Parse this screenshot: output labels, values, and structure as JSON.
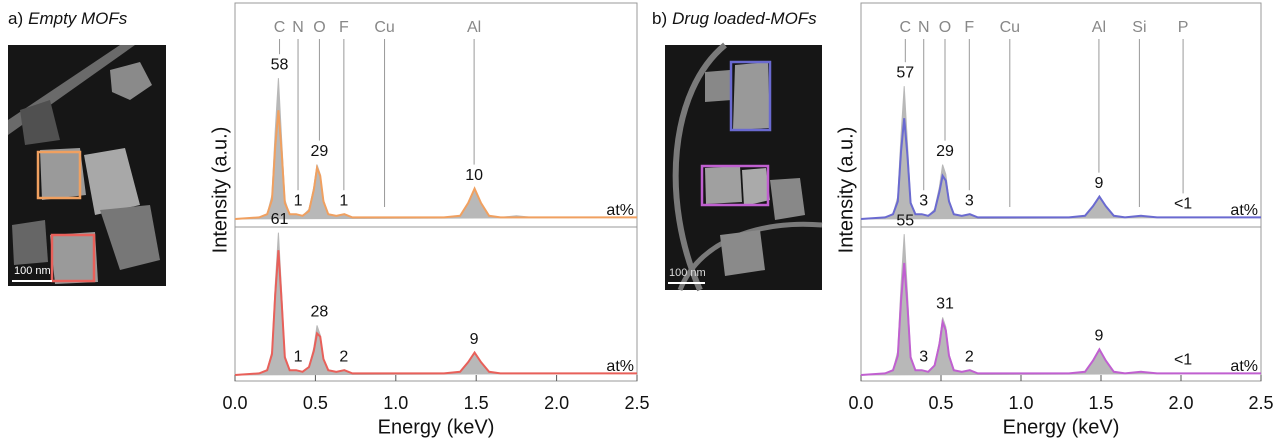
{
  "chart_data": [
    {
      "type": "line",
      "panel_label": "a)",
      "panel_title": "Empty MOFs",
      "scale_bar": "100 nm",
      "xlabel": "Energy (keV)",
      "ylabel": "Intensity (a.u.)",
      "unit": "at%",
      "xlim": [
        0,
        2.5
      ],
      "xticks": [
        {
          "value": 0,
          "label": "0.0"
        },
        0.5,
        {
          "value": 1,
          "label": "1.0"
        },
        1.5,
        {
          "value": 2,
          "label": "2.0"
        },
        2.5
      ],
      "elements": [
        "C",
        "N",
        "O",
        "F",
        "Cu",
        "Al"
      ],
      "energies": [
        0.277,
        0.392,
        0.525,
        0.677,
        0.93,
        1.487
      ],
      "x": [
        0,
        0.15,
        0.2,
        0.23,
        0.25,
        0.27,
        0.29,
        0.31,
        0.34,
        0.38,
        0.42,
        0.46,
        0.49,
        0.51,
        0.53,
        0.55,
        0.58,
        0.63,
        0.68,
        0.73,
        0.8,
        0.93,
        1.1,
        1.3,
        1.4,
        1.45,
        1.49,
        1.53,
        1.58,
        1.65,
        1.75,
        1.85,
        2.0,
        2.2,
        2.5
      ],
      "spectra": [
        {
          "ylim": [
            0,
            100
          ],
          "composition": [
            58,
            1,
            29,
            1,
            null,
            10
          ],
          "series": [
            {
              "color": "#b8b8b8",
              "values": [
                0,
                1,
                3,
                15,
                55,
                88,
                50,
                12,
                3,
                3,
                2,
                6,
                20,
                34,
                28,
                12,
                3,
                2,
                3,
                1,
                1,
                1,
                1,
                1,
                2,
                10,
                19,
                10,
                2,
                1,
                2,
                1,
                1,
                1,
                1
              ]
            },
            {
              "color": "#f0a060",
              "values": [
                0,
                1,
                3,
                12,
                45,
                68,
                42,
                10,
                3,
                3,
                2,
                5,
                18,
                32,
                27,
                11,
                3,
                2,
                3,
                1,
                1,
                1,
                1,
                1,
                2,
                10,
                19,
                10,
                2,
                1,
                1,
                1,
                1,
                1,
                1
              ]
            }
          ]
        },
        {
          "ylim": [
            0,
            100
          ],
          "composition": [
            61,
            1,
            28,
            2,
            null,
            9
          ],
          "series": [
            {
              "color": "#b8b8b8",
              "values": [
                0,
                1,
                3,
                15,
                56,
                89,
                52,
                12,
                3,
                3,
                2,
                5,
                17,
                31,
                25,
                10,
                3,
                2,
                3,
                1,
                1,
                1,
                1,
                1,
                2,
                8,
                14,
                8,
                2,
                1,
                1,
                1,
                1,
                1,
                1
              ]
            },
            {
              "color": "#e8605a",
              "values": [
                0,
                1,
                3,
                13,
                50,
                78,
                46,
                11,
                3,
                3,
                2,
                5,
                15,
                26,
                24,
                10,
                3,
                2,
                3,
                1,
                1,
                1,
                1,
                1,
                2,
                8,
                14,
                8,
                2,
                1,
                1,
                1,
                1,
                1,
                1
              ]
            }
          ]
        }
      ]
    },
    {
      "type": "line",
      "panel_label": "b)",
      "panel_title": "Drug loaded-MOFs",
      "scale_bar": "100 nm",
      "xlabel": "Energy (keV)",
      "ylabel": "Intensity (a.u.)",
      "unit": "at%",
      "xlim": [
        0,
        2.5
      ],
      "xticks": [
        {
          "value": 0,
          "label": "0.0"
        },
        0.5,
        {
          "value": 1,
          "label": "1.0"
        },
        1.5,
        {
          "value": 2,
          "label": "2.0"
        },
        2.5
      ],
      "elements": [
        "C",
        "N",
        "O",
        "F",
        "Cu",
        "Al",
        "Si",
        "P"
      ],
      "energies": [
        0.277,
        0.392,
        0.525,
        0.677,
        0.93,
        1.487,
        1.74,
        2.013
      ],
      "x": [
        0,
        0.15,
        0.2,
        0.23,
        0.25,
        0.27,
        0.29,
        0.31,
        0.34,
        0.38,
        0.42,
        0.46,
        0.49,
        0.51,
        0.53,
        0.55,
        0.58,
        0.63,
        0.68,
        0.73,
        0.8,
        0.93,
        1.1,
        1.3,
        1.4,
        1.45,
        1.49,
        1.53,
        1.58,
        1.65,
        1.75,
        1.85,
        2.0,
        2.2,
        2.5
      ],
      "spectra": [
        {
          "ylim": [
            0,
            100
          ],
          "composition": [
            57,
            3,
            29,
            3,
            null,
            9,
            null,
            null
          ],
          "value_labels": [
            null,
            null,
            null,
            null,
            null,
            null,
            null,
            "<1"
          ],
          "series": [
            {
              "color": "#b8b8b8",
              "values": [
                0,
                1,
                3,
                14,
                52,
                83,
                48,
                11,
                3,
                3,
                2,
                6,
                20,
                34,
                28,
                12,
                3,
                2,
                3,
                1,
                1,
                1,
                1,
                1,
                2,
                8,
                14,
                8,
                2,
                1,
                2,
                1,
                1,
                1,
                1
              ]
            },
            {
              "color": "#6a6ad0",
              "values": [
                0,
                1,
                3,
                11,
                42,
                63,
                40,
                10,
                3,
                3,
                2,
                5,
                17,
                27,
                24,
                11,
                3,
                2,
                3,
                1,
                1,
                1,
                1,
                1,
                2,
                8,
                14,
                8,
                2,
                1,
                2,
                1,
                1,
                1,
                1
              ]
            }
          ]
        },
        {
          "ylim": [
            0,
            100
          ],
          "composition": [
            55,
            3,
            31,
            2,
            null,
            9,
            null,
            null
          ],
          "value_labels": [
            null,
            null,
            null,
            null,
            null,
            null,
            null,
            "<1"
          ],
          "series": [
            {
              "color": "#b8b8b8",
              "values": [
                0,
                1,
                3,
                15,
                56,
                88,
                52,
                12,
                3,
                3,
                2,
                6,
                21,
                36,
                30,
                13,
                3,
                2,
                3,
                1,
                1,
                1,
                1,
                1,
                2,
                9,
                16,
                9,
                2,
                1,
                2,
                1,
                1,
                1,
                1
              ]
            },
            {
              "color": "#c060d0",
              "values": [
                0,
                1,
                3,
                12,
                46,
                70,
                44,
                11,
                3,
                3,
                2,
                6,
                19,
                33,
                28,
                12,
                3,
                2,
                3,
                1,
                1,
                1,
                1,
                1,
                2,
                9,
                16,
                9,
                2,
                1,
                2,
                1,
                1,
                1,
                1
              ]
            }
          ]
        }
      ]
    }
  ]
}
